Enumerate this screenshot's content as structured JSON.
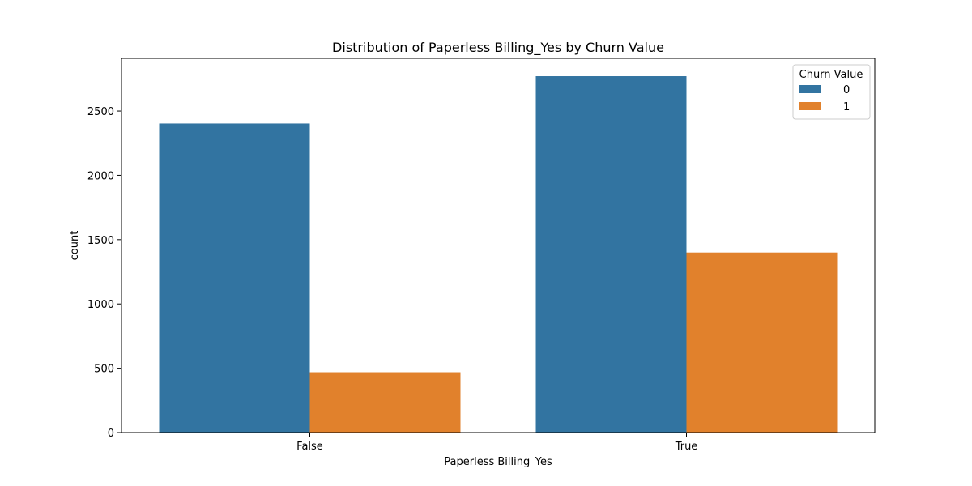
{
  "chart_data": {
    "type": "bar",
    "title": "Distribution of Paperless Billing_Yes by Churn Value",
    "xlabel": "Paperless Billing_Yes",
    "ylabel": "count",
    "categories": [
      "False",
      "True"
    ],
    "series": [
      {
        "name": "0",
        "color": "#3274a1",
        "values": [
          2403,
          2771
        ]
      },
      {
        "name": "1",
        "color": "#e1812c",
        "values": [
          469,
          1400
        ]
      }
    ],
    "ylim": [
      0,
      2909.7
    ],
    "yticks": [
      0,
      500,
      1000,
      1500,
      2000,
      2500
    ],
    "grid": false,
    "legend": {
      "title": "Churn Value",
      "placement": "upper right"
    }
  }
}
